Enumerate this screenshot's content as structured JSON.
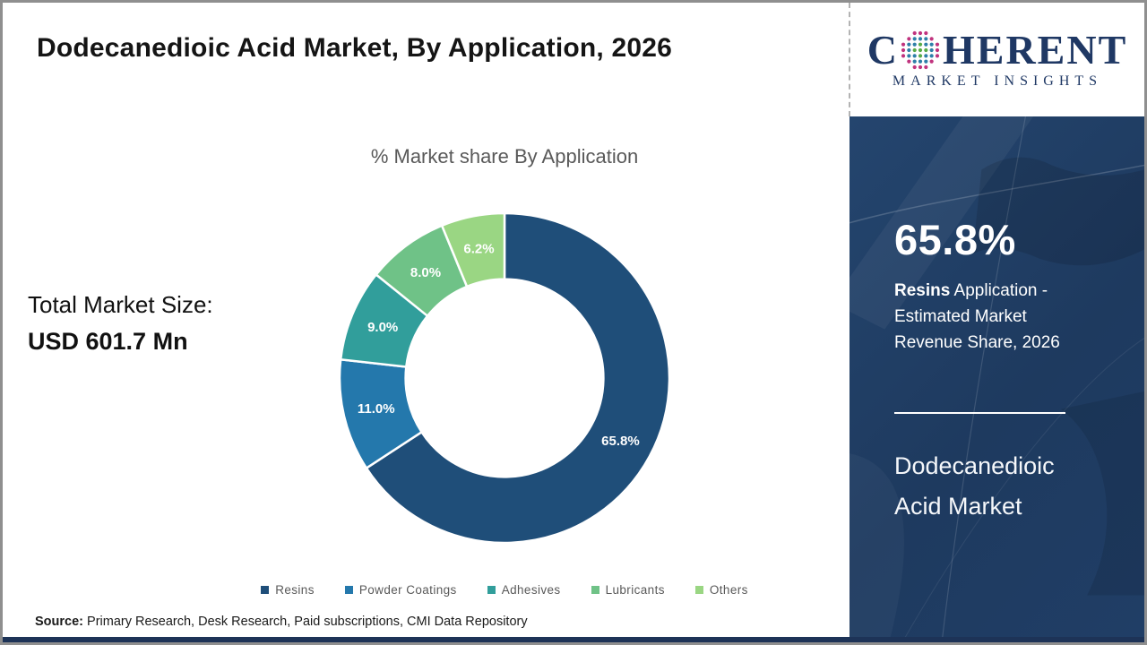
{
  "header": {
    "title": "Dodecanedioic Acid Market, By Application, 2026"
  },
  "logo": {
    "word_start": "C",
    "word_end": "HERENT",
    "subtitle": "MARKET INSIGHTS",
    "navy": "#1f3864",
    "dot_green": "#57ab47",
    "dot_teal": "#2e7fa8",
    "dot_magenta": "#c0337e"
  },
  "chart_data": {
    "type": "pie",
    "variant": "donut",
    "title": "% Market share By Application",
    "start_angle_deg": 0,
    "direction": "clockwise",
    "inner_radius_ratio": 0.6,
    "legend_position": "bottom",
    "label_color": "#ffffff",
    "segments": [
      {
        "label": "Resins",
        "value": 65.8,
        "display": "65.8%",
        "color": "#1f4e79"
      },
      {
        "label": "Powder Coatings",
        "value": 11.0,
        "display": "11.0%",
        "color": "#2478ac"
      },
      {
        "label": "Adhesives",
        "value": 9.0,
        "display": "9.0%",
        "color": "#319e9b"
      },
      {
        "label": "Lubricants",
        "value": 8.0,
        "display": "8.0%",
        "color": "#6fc287"
      },
      {
        "label": "Others",
        "value": 6.2,
        "display": "6.2%",
        "color": "#9ad683"
      }
    ]
  },
  "market_size": {
    "label": "Total Market Size:",
    "value": "USD 601.7 Mn"
  },
  "sidebar": {
    "highlight_value": "65.8%",
    "highlight_bold": "Resins",
    "highlight_rest": " Application - Estimated Market Revenue Share, 2026",
    "product_line1": "Dodecanedioic",
    "product_line2": "Acid Market",
    "bg_color": "#1e3a5f"
  },
  "footer": {
    "source_label": "Source:",
    "source_text": " Primary Research, Desk Research, Paid subscriptions, CMI Data Repository"
  }
}
